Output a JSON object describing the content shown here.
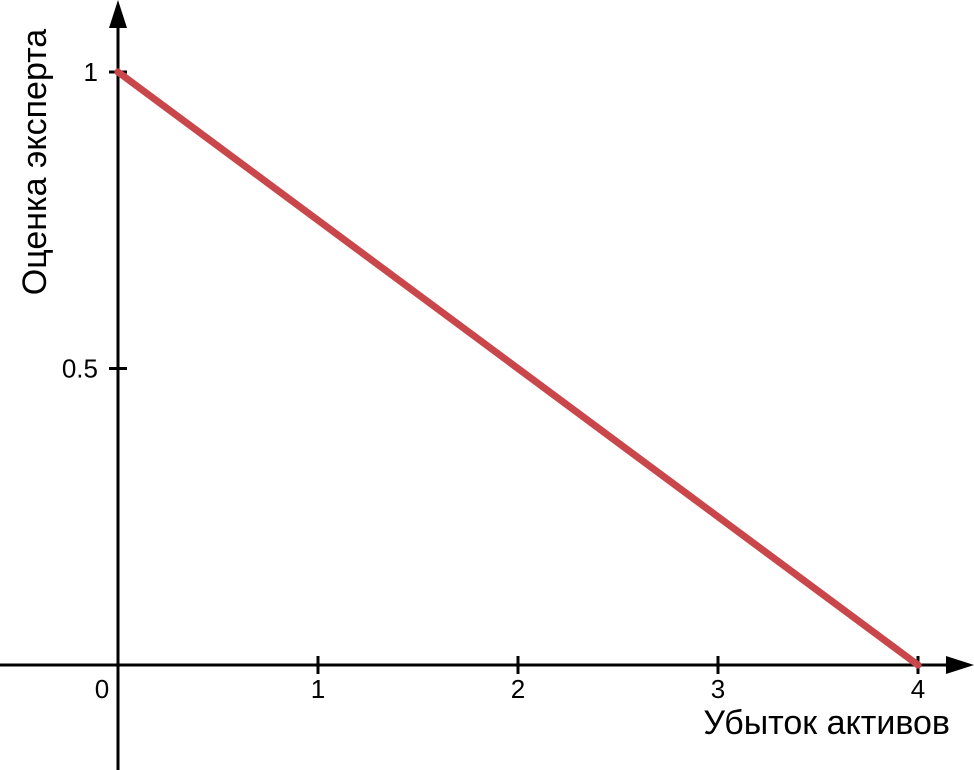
{
  "chart_data": {
    "type": "line",
    "xlabel": "Убыток активов",
    "ylabel": "Оценка эксперта",
    "xlim": [
      -0.6,
      4.28
    ],
    "ylim": [
      -0.17,
      1.1
    ],
    "x_ticks": [
      {
        "value": 0,
        "label": "0"
      },
      {
        "value": 1,
        "label": "1"
      },
      {
        "value": 2,
        "label": "2"
      },
      {
        "value": 3,
        "label": "3"
      },
      {
        "value": 4,
        "label": "4"
      }
    ],
    "y_ticks": [
      {
        "value": 0.5,
        "label": "0.5"
      },
      {
        "value": 1,
        "label": "1"
      }
    ],
    "series": [
      {
        "x": [
          0,
          4
        ],
        "y": [
          1,
          0
        ],
        "color": "#c9474a"
      }
    ],
    "grid": false
  }
}
